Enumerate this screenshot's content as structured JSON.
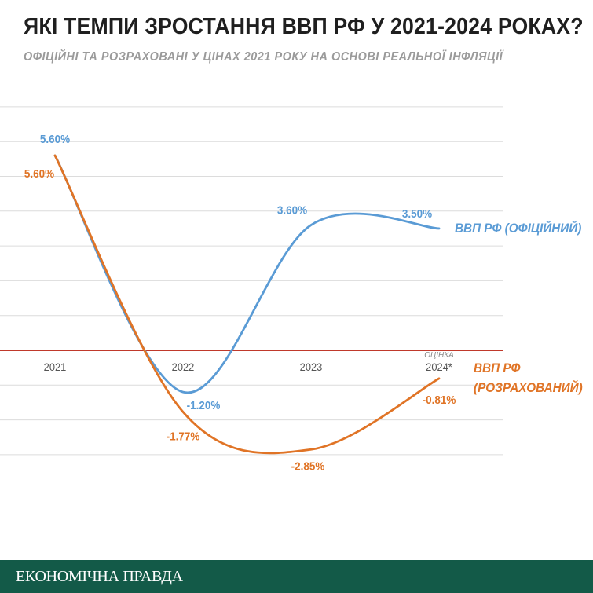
{
  "title": "ЯКІ ТЕМПИ ЗРОСТАННЯ ВВП РФ У 2021-2024 РОКАХ?",
  "subtitle": "ОФІЦІЙНІ ТА РОЗРАХОВАНІ У ЦІНАХ 2021 РОКУ НА ОСНОВІ РЕАЛЬНОЇ ІНФЛЯЦІЇ",
  "footer": {
    "brand": "ЕКОНОМІЧНА ПРАВДА",
    "background": "#135a48"
  },
  "chart_data": {
    "type": "line",
    "categories": [
      "2021",
      "2022",
      "2023",
      "2024*"
    ],
    "estimate_note": "ОЦІНКА",
    "ylim": [
      -3.75,
      7.25
    ],
    "grid": true,
    "zero_line_color": "#c0392b",
    "legend_placement": "right",
    "series": [
      {
        "name": "ВВП РФ (ОФІЦІЙНИЙ)",
        "color": "#5a9bd5",
        "values": [
          5.6,
          -1.2,
          3.6,
          3.5
        ],
        "labels": [
          "5.60%",
          "-1.20%",
          "3.60%",
          "3.50%"
        ]
      },
      {
        "name": "ВВП РФ (РОЗРАХОВАНИЙ)",
        "color": "#e07426",
        "values": [
          5.6,
          -1.77,
          -2.85,
          -0.81
        ],
        "labels": [
          "5.60%",
          "-1.77%",
          "-2.85%",
          "-0.81%"
        ]
      }
    ]
  }
}
